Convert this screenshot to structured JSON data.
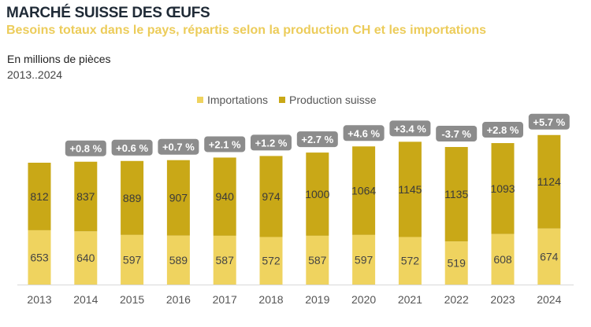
{
  "title": "MARCHÉ SUISSE DES ŒUFS",
  "subtitle": "Besoins totaux dans le pays, répartis selon la production CH et les importations",
  "unit_label": "En millions de pièces",
  "range_label": "2013..2024",
  "colors": {
    "imports": "#efd35f",
    "production": "#c9a817",
    "badge": "#8c8c8c"
  },
  "chart_data": {
    "type": "bar",
    "stacked": true,
    "title": "MARCHÉ SUISSE DES ŒUFS",
    "ylabel": "En millions de pièces",
    "legend_position": "top-center",
    "legend": [
      "Importations",
      "Production suisse"
    ],
    "categories": [
      "2013",
      "2014",
      "2015",
      "2016",
      "2017",
      "2018",
      "2019",
      "2020",
      "2021",
      "2022",
      "2023",
      "2024"
    ],
    "series": [
      {
        "name": "Importations",
        "values": [
          653,
          640,
          597,
          589,
          587,
          572,
          587,
          597,
          572,
          519,
          608,
          674
        ]
      },
      {
        "name": "Production suisse",
        "values": [
          812,
          837,
          889,
          907,
          940,
          974,
          1000,
          1064,
          1145,
          1135,
          1093,
          1124
        ]
      }
    ],
    "change_labels": [
      "",
      "+0.8 %",
      "+0.6 %",
      "+0.7 %",
      "+2.1 %",
      "+1.2 %",
      "+2.7 %",
      "+4.6 %",
      "+3.4 %",
      "-3.7 %",
      "+2.8 %",
      "+5.7 %"
    ],
    "ylim": [
      0,
      1900
    ]
  }
}
